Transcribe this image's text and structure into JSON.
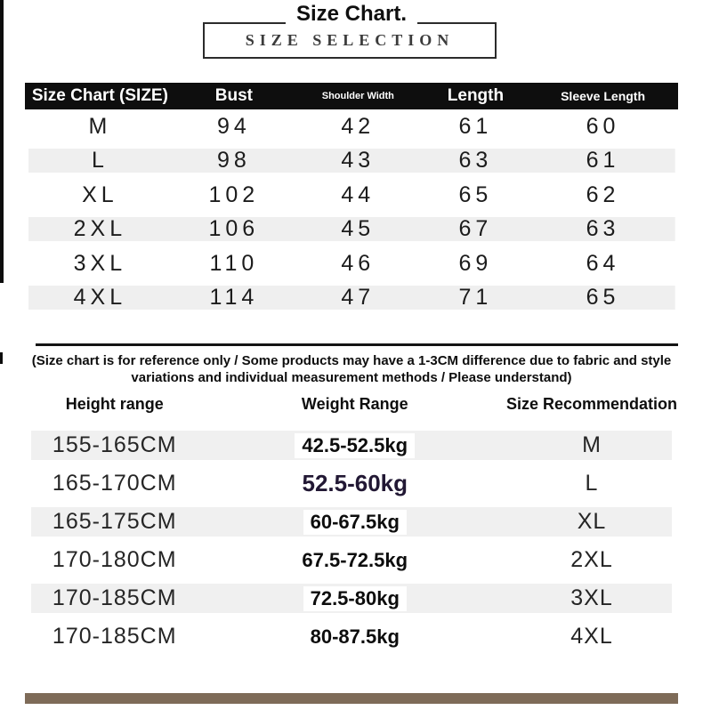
{
  "page": {
    "title": "Size Chart.",
    "subtitle": "SIZE SELECTION"
  },
  "size_table": {
    "headers": {
      "size": "Size Chart (SIZE)",
      "bust": "Bust",
      "shoulder_width": "Shoulder Width",
      "length": "Length",
      "sleeve_length": "Sleeve Length"
    },
    "rows": [
      {
        "size": "M",
        "bust": "94",
        "shoulder_width": "42",
        "length": "61",
        "sleeve_length": "60"
      },
      {
        "size": "L",
        "bust": "98",
        "shoulder_width": "43",
        "length": "63",
        "sleeve_length": "61"
      },
      {
        "size": "XL",
        "bust": "102",
        "shoulder_width": "44",
        "length": "65",
        "sleeve_length": "62"
      },
      {
        "size": "2XL",
        "bust": "106",
        "shoulder_width": "45",
        "length": "67",
        "sleeve_length": "63"
      },
      {
        "size": "3XL",
        "bust": "110",
        "shoulder_width": "46",
        "length": "69",
        "sleeve_length": "64"
      },
      {
        "size": "4XL",
        "bust": "114",
        "shoulder_width": "47",
        "length": "71",
        "sleeve_length": "65"
      }
    ]
  },
  "disclaimer": "(Size chart is for reference only / Some products may have a 1-3CM difference due to fabric and style variations and individual measurement methods / Please understand)",
  "recommendation_table": {
    "headers": {
      "height": "Height range",
      "weight": "Weight Range",
      "size": "Size Recommendation"
    },
    "rows": [
      {
        "height": "155-165CM",
        "weight": "42.5-52.5kg",
        "size": "M"
      },
      {
        "height": "165-170CM",
        "weight": "52.5-60kg",
        "size": "L"
      },
      {
        "height": "165-175CM",
        "weight": "60-67.5kg",
        "size": "XL"
      },
      {
        "height": "170-180CM",
        "weight": "67.5-72.5kg",
        "size": "2XL"
      },
      {
        "height": "170-185CM",
        "weight": "72.5-80kg",
        "size": "3XL"
      },
      {
        "height": "170-185CM",
        "weight": "80-87.5kg",
        "size": "4XL"
      }
    ]
  },
  "colors": {
    "table_header_bg": "#0e0e0e",
    "alt_row_bg": "#efefef",
    "accent_bar": "#7e6b58",
    "highlighted_weight_text": "#221834",
    "title_box_border": "#2b2b2b"
  }
}
